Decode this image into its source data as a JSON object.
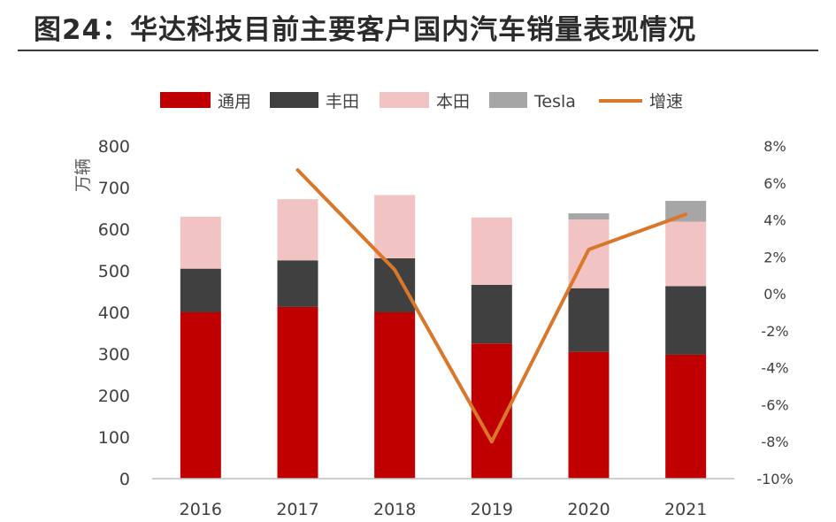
{
  "page_title": "图24：华达科技目前主要客户国内汽车销量表现情况",
  "chart_data": {
    "type": "bar",
    "stacked": true,
    "categories": [
      "2016",
      "2017",
      "2018",
      "2019",
      "2020",
      "2021"
    ],
    "ylabel": "万辆",
    "ylim": [
      0,
      800
    ],
    "yticks": [
      "0",
      "100",
      "200",
      "300",
      "400",
      "500",
      "600",
      "700",
      "800"
    ],
    "y2lim": [
      -10,
      8
    ],
    "y2ticks": [
      "-10%",
      "-8%",
      "-6%",
      "-4%",
      "-2%",
      "0%",
      "2%",
      "4%",
      "6%",
      "8%"
    ],
    "legend_position": "top",
    "series": [
      {
        "name": "通用",
        "color": "#c00000",
        "values": [
          400,
          413,
          400,
          325,
          305,
          298
        ]
      },
      {
        "name": "丰田",
        "color": "#404040",
        "values": [
          105,
          112,
          130,
          141,
          153,
          165
        ]
      },
      {
        "name": "本田",
        "color": "#f2c3c3",
        "values": [
          125,
          147,
          152,
          162,
          165,
          155
        ]
      },
      {
        "name": "Tesla",
        "color": "#a6a6a6",
        "values": [
          0,
          0,
          0,
          0,
          15,
          50
        ]
      }
    ],
    "line_series": {
      "name": "增速",
      "color": "#d9772b",
      "axis": "right",
      "values": [
        null,
        6.7,
        1.3,
        -8.0,
        2.4,
        4.3
      ]
    }
  }
}
